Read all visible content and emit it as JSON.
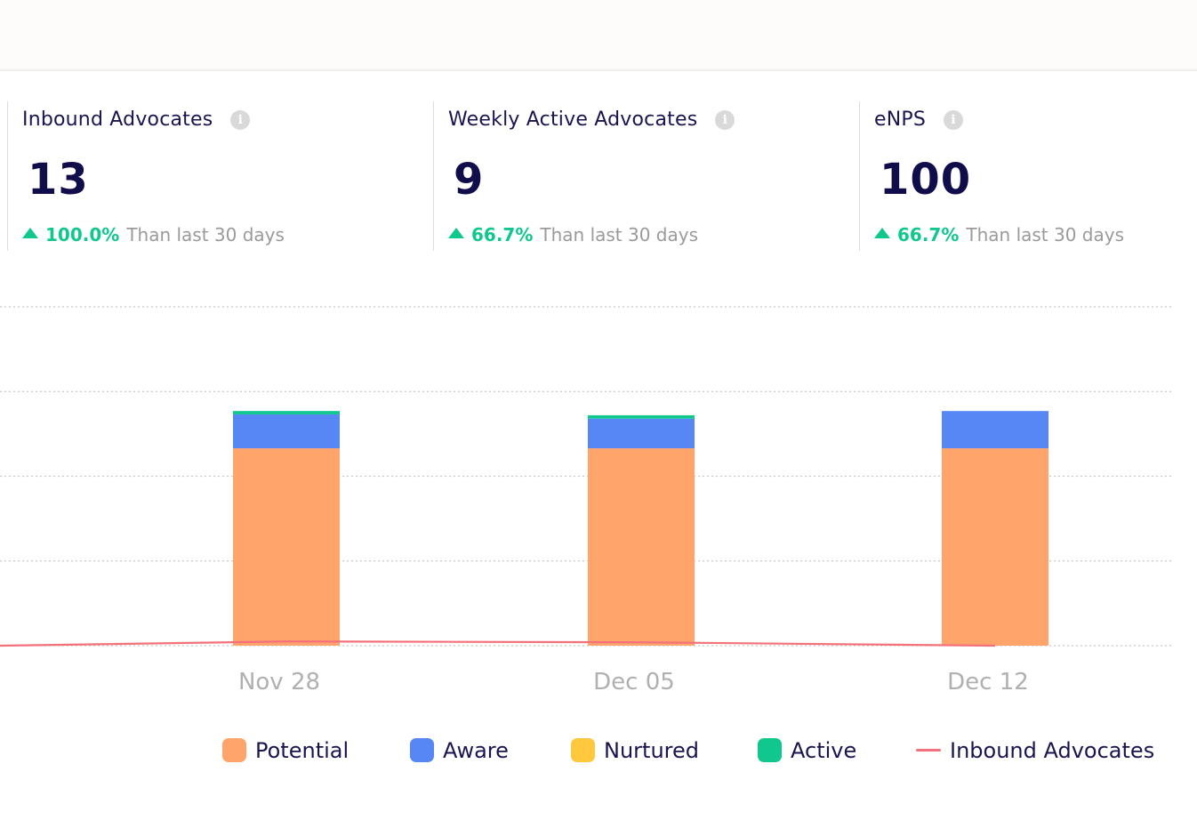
{
  "kpis": [
    {
      "title": "Inbound Advocates",
      "value": "13",
      "delta": "100.0%",
      "delta_text": "Than last 30 days"
    },
    {
      "title": "Weekly Active Advocates",
      "value": "9",
      "delta": "66.7%",
      "delta_text": "Than last 30 days"
    },
    {
      "title": "eNPS",
      "value": "100",
      "delta": "66.7%",
      "delta_text": "Than last 30 days"
    }
  ],
  "info_icon": "info-icon",
  "colors": {
    "potential": "#ffa46b",
    "aware": "#5687f5",
    "nurtured": "#ffc83d",
    "active": "#10c88e",
    "inbound": "#f4707a",
    "positive_delta": "#10c88e"
  },
  "chart_data": {
    "type": "bar",
    "stacked": true,
    "categories": [
      "Nov 28",
      "Dec 05",
      "Dec 12"
    ],
    "ylim": [
      0,
      4
    ],
    "grid": true,
    "legend_position": "bottom",
    "series": [
      {
        "name": "Potential",
        "type": "bar",
        "values": [
          2.33,
          2.33,
          2.33
        ]
      },
      {
        "name": "Aware",
        "type": "bar",
        "values": [
          0.4,
          0.35,
          0.44
        ]
      },
      {
        "name": "Nurtured",
        "type": "bar",
        "values": [
          0,
          0,
          0
        ]
      },
      {
        "name": "Active",
        "type": "bar",
        "values": [
          0.04,
          0.04,
          0
        ]
      },
      {
        "name": "Inbound Advocates",
        "type": "line",
        "values": [
          0.05,
          0.04,
          0
        ]
      }
    ]
  }
}
